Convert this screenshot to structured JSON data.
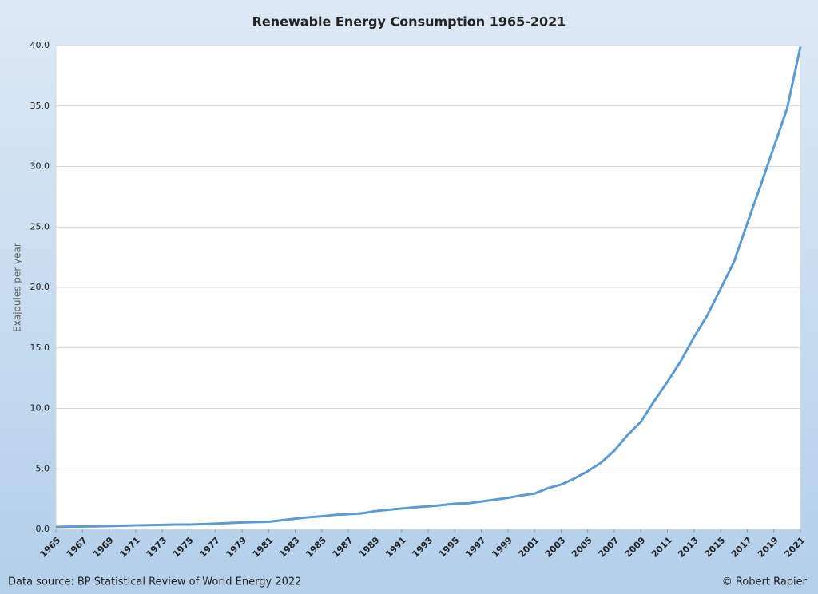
{
  "chart_data": {
    "type": "line",
    "title": "Renewable Energy Consumption 1965-2021",
    "y_label": "Exajoules per year",
    "source": "Data source: BP Statistical Review of World Energy 2022",
    "credit": "© Robert Rapier",
    "x": [
      1965,
      1966,
      1967,
      1968,
      1969,
      1970,
      1971,
      1972,
      1973,
      1974,
      1975,
      1976,
      1977,
      1978,
      1979,
      1980,
      1981,
      1982,
      1983,
      1984,
      1985,
      1986,
      1987,
      1988,
      1989,
      1990,
      1991,
      1992,
      1993,
      1994,
      1995,
      1996,
      1997,
      1998,
      1999,
      2000,
      2001,
      2002,
      2003,
      2004,
      2005,
      2006,
      2007,
      2008,
      2009,
      2010,
      2011,
      2012,
      2013,
      2014,
      2015,
      2016,
      2017,
      2018,
      2019,
      2020,
      2021
    ],
    "series": [
      {
        "name": "Renewable energy",
        "color": "#5b9bd5",
        "values": [
          0.2,
          0.22,
          0.23,
          0.25,
          0.27,
          0.3,
          0.33,
          0.35,
          0.37,
          0.4,
          0.4,
          0.43,
          0.47,
          0.52,
          0.57,
          0.6,
          0.63,
          0.75,
          0.88,
          1.0,
          1.08,
          1.2,
          1.25,
          1.32,
          1.5,
          1.62,
          1.72,
          1.82,
          1.9,
          2.0,
          2.12,
          2.15,
          2.3,
          2.45,
          2.6,
          2.8,
          2.95,
          3.4,
          3.7,
          4.2,
          4.8,
          5.5,
          6.5,
          7.8,
          8.9,
          10.6,
          12.2,
          13.9,
          15.9,
          17.7,
          19.9,
          22.1,
          25.3,
          28.4,
          31.6,
          34.8,
          39.9
        ]
      }
    ],
    "xlim": [
      1965,
      2021
    ],
    "xticks": [
      1965,
      1967,
      1969,
      1971,
      1973,
      1975,
      1977,
      1979,
      1981,
      1983,
      1985,
      1987,
      1989,
      1991,
      1993,
      1995,
      1997,
      1999,
      2001,
      2003,
      2005,
      2007,
      2009,
      2011,
      2013,
      2015,
      2017,
      2019,
      2021
    ],
    "ylim": [
      0,
      40
    ],
    "yticks": [
      {
        "value": 0,
        "label": "0.0"
      },
      {
        "value": 5,
        "label": "5.0"
      },
      {
        "value": 10,
        "label": "10.0"
      },
      {
        "value": 15,
        "label": "15.0"
      },
      {
        "value": 20,
        "label": "20.0"
      },
      {
        "value": 25,
        "label": "25.0"
      },
      {
        "value": 30,
        "label": "30.0"
      },
      {
        "value": 35,
        "label": "35.0"
      },
      {
        "value": 40,
        "label": "40.0"
      }
    ],
    "grid": true
  }
}
